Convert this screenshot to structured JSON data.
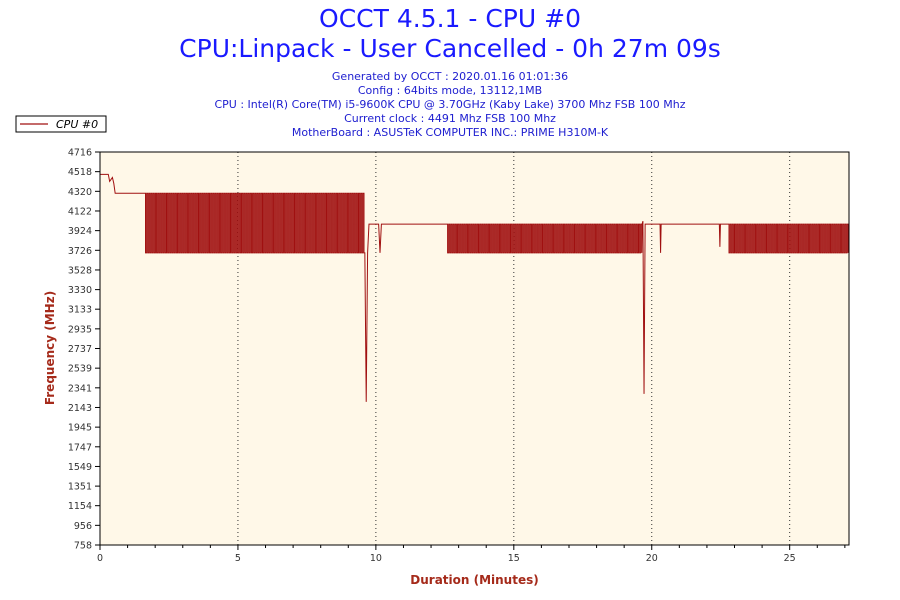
{
  "header": {
    "title": "OCCT 4.5.1 - CPU #0",
    "subtitle": "CPU:Linpack - User Cancelled - 0h 27m 09s",
    "info_lines": [
      "Generated by OCCT : 2020.01.16 01:01:36",
      "Config : 64bits mode, 13112,1MB",
      "CPU : Intel(R) Core(TM) i5-9600K CPU @ 3.70GHz (Kaby Lake) 3700 Mhz FSB 100 Mhz",
      "Current clock : 4491 Mhz FSB 100 Mhz",
      "MotherBoard : ASUSTeK COMPUTER INC.: PRIME H310M-K"
    ]
  },
  "colors": {
    "series": "#a01010",
    "title": "#1a1aff",
    "info": "#2020d0",
    "plot_bg": "#fff8e8",
    "axis_label": "#a52a1a"
  },
  "chart_data": {
    "type": "line",
    "xlabel": "Duration (Minutes)",
    "ylabel": "Frequency (MHz)",
    "xlim": [
      0,
      27.15
    ],
    "ylim": [
      758,
      4716
    ],
    "x_ticks": [
      0,
      5,
      10,
      15,
      20,
      25
    ],
    "y_ticks": [
      758,
      956,
      1154,
      1351,
      1549,
      1747,
      1945,
      2143,
      2341,
      2539,
      2737,
      2935,
      3133,
      3330,
      3528,
      3726,
      3924,
      4122,
      4320,
      4518,
      4716
    ],
    "legend": {
      "label": "CPU #0",
      "position": "top-left"
    },
    "series": [
      {
        "name": "CPU #0",
        "segments": [
          {
            "type": "line",
            "points": [
              [
                0,
                4491
              ],
              [
                0.3,
                4491
              ],
              [
                0.35,
                4420
              ],
              [
                0.45,
                4460
              ],
              [
                0.5,
                4400
              ],
              [
                0.55,
                4300
              ],
              [
                1.65,
                4300
              ]
            ]
          },
          {
            "type": "oscillate",
            "x_start": 1.65,
            "x_end": 9.6,
            "high": 4300,
            "low": 3700
          },
          {
            "type": "line",
            "points": [
              [
                9.6,
                3700
              ],
              [
                9.65,
                2200
              ],
              [
                9.7,
                3700
              ],
              [
                9.75,
                3990
              ],
              [
                10.1,
                3990
              ],
              [
                10.15,
                3700
              ],
              [
                10.2,
                3990
              ],
              [
                12.6,
                3990
              ]
            ]
          },
          {
            "type": "oscillate",
            "x_start": 12.6,
            "x_end": 19.65,
            "high": 3990,
            "low": 3700
          },
          {
            "type": "line",
            "points": [
              [
                19.65,
                3990
              ],
              [
                19.68,
                4020
              ],
              [
                19.72,
                2280
              ],
              [
                19.76,
                3990
              ],
              [
                20.3,
                3990
              ],
              [
                20.32,
                3700
              ],
              [
                20.34,
                3990
              ],
              [
                22.45,
                3990
              ],
              [
                22.47,
                3760
              ],
              [
                22.49,
                3990
              ],
              [
                22.8,
                3990
              ]
            ]
          },
          {
            "type": "oscillate",
            "x_start": 22.8,
            "x_end": 27.15,
            "high": 3990,
            "low": 3700
          }
        ]
      }
    ]
  }
}
